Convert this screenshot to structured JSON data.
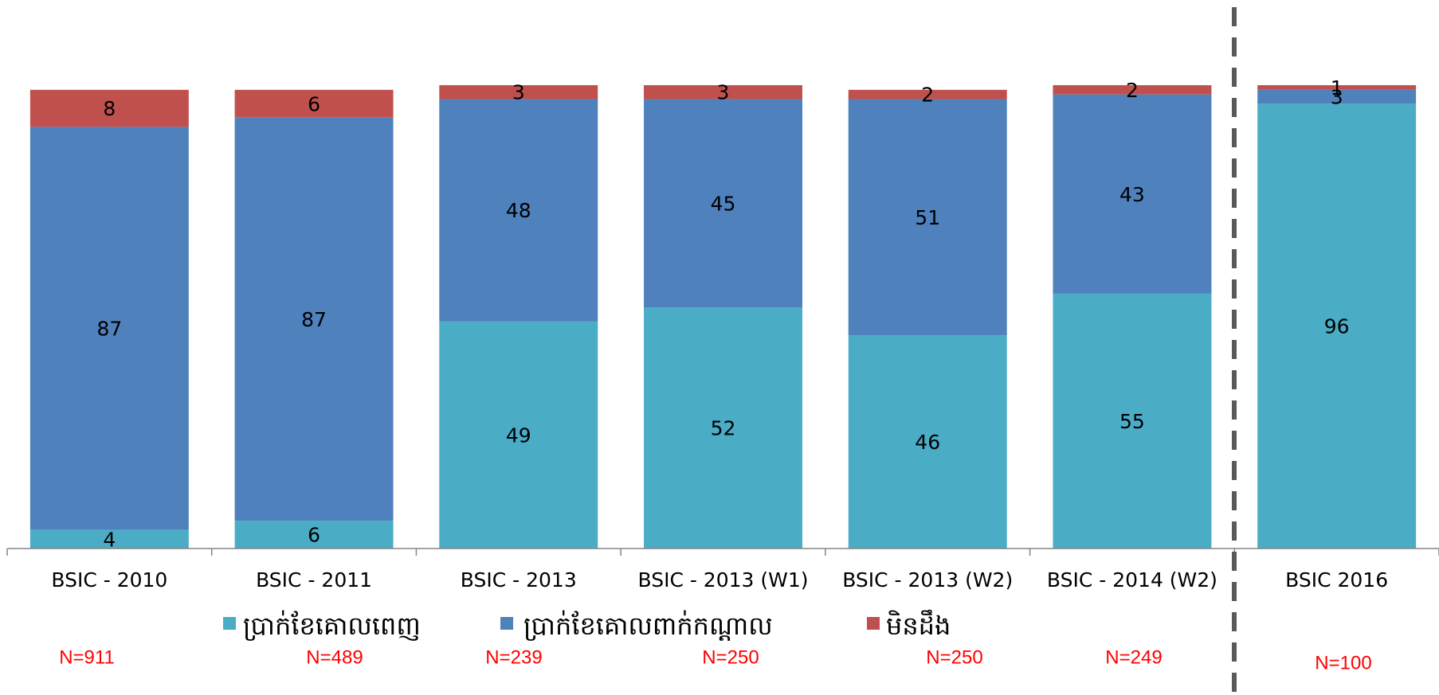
{
  "chart_data": {
    "type": "bar",
    "stacked": true,
    "categories": [
      "BSIC - 2010",
      "BSIC - 2011",
      "BSIC - 2013",
      "BSIC - 2013 (W1)",
      "BSIC - 2013 (W2)",
      "BSIC - 2014 (W2)",
      "BSIC 2016"
    ],
    "series": [
      {
        "name": "ប្រាក់ខែគោលពេញ",
        "color": "#4bacc6",
        "values": [
          4,
          6,
          49,
          52,
          46,
          55,
          96
        ]
      },
      {
        "name": "ប្រាក់ខែគោលពាក់កណ្ដាល",
        "color": "#4f81bd",
        "values": [
          87,
          87,
          48,
          45,
          51,
          43,
          3
        ]
      },
      {
        "name": "មិនដឹង",
        "color": "#c0504d",
        "values": [
          8,
          6,
          3,
          3,
          2,
          2,
          1
        ]
      }
    ],
    "ylim": [
      0,
      100
    ],
    "legend": "bottom",
    "annotations": [
      "N=911",
      "N=489",
      "N=239",
      "N=250",
      "N=250",
      "N=249",
      "N=100"
    ]
  }
}
